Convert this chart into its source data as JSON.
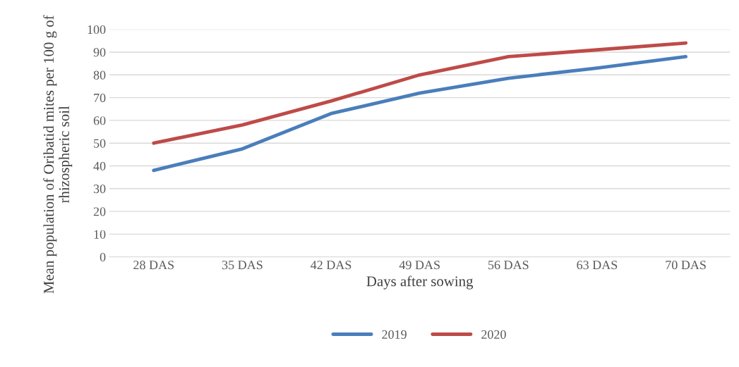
{
  "chart_data": {
    "type": "line",
    "xlabel": "Days after sowing",
    "ylabel": "Mean population of Oribatid mites per 100 g of rhizospheric soil",
    "categories": [
      "28 DAS",
      "35 DAS",
      "42 DAS",
      "49 DAS",
      "56 DAS",
      "63 DAS",
      "70 DAS"
    ],
    "series": [
      {
        "name": "2019",
        "color": "#4a7ebb",
        "values": [
          38,
          47.5,
          63,
          72,
          78.5,
          83,
          88
        ]
      },
      {
        "name": "2020",
        "color": "#be4b48",
        "values": [
          50,
          58,
          68.5,
          80,
          88,
          91,
          94
        ]
      }
    ],
    "ylim": [
      0,
      100
    ],
    "yticks": [
      0,
      10,
      20,
      30,
      40,
      50,
      60,
      70,
      80,
      90,
      100
    ],
    "grid": "y",
    "legend": "bottom",
    "marker": "none",
    "line_style": "solid"
  }
}
